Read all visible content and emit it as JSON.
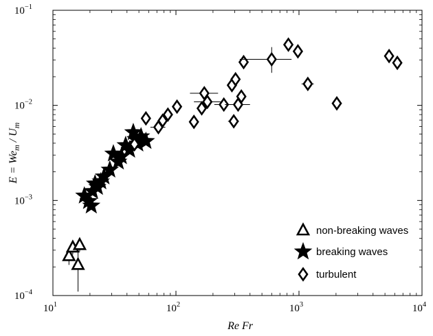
{
  "chart_data": {
    "type": "scatter",
    "xscale": "log",
    "yscale": "log",
    "xlim": [
      10,
      10000
    ],
    "ylim": [
      0.0001,
      0.1
    ],
    "xlabel": "Re Fr",
    "ylabel": "E = We_m / U_m",
    "xticks": [
      {
        "base": "10",
        "exp": "1"
      },
      {
        "base": "10",
        "exp": "2"
      },
      {
        "base": "10",
        "exp": "3"
      },
      {
        "base": "10",
        "exp": "4"
      }
    ],
    "yticks": [
      {
        "base": "10",
        "exp": "−4"
      },
      {
        "base": "10",
        "exp": "−3"
      },
      {
        "base": "10",
        "exp": "−2"
      },
      {
        "base": "10",
        "exp": "−1"
      }
    ],
    "grid": false,
    "legend_position": "bottom-right",
    "series": [
      {
        "name": "non-breaking waves",
        "marker": "triangle",
        "points": [
          {
            "x": 13.5,
            "y": 0.00026,
            "yerr": [
              0.00021,
              0.00031
            ]
          },
          {
            "x": 14.5,
            "y": 0.00032,
            "yerr": [
              0.00027,
              0.00037
            ]
          },
          {
            "x": 16.0,
            "y": 0.00021,
            "yerr": [
              0.00011,
              0.00031
            ]
          },
          {
            "x": 16.5,
            "y": 0.00034,
            "yerr": [
              0.00029,
              0.00039
            ]
          }
        ]
      },
      {
        "name": "breaking waves",
        "marker": "star",
        "points": [
          {
            "x": 18.0,
            "y": 0.00112
          },
          {
            "x": 19.5,
            "y": 0.00098
          },
          {
            "x": 20.5,
            "y": 0.00088
          },
          {
            "x": 21.0,
            "y": 0.00125
          },
          {
            "x": 22.0,
            "y": 0.0015
          },
          {
            "x": 23.0,
            "y": 0.00138
          },
          {
            "x": 24.5,
            "y": 0.00158
          },
          {
            "x": 26.0,
            "y": 0.00178
          },
          {
            "x": 29.0,
            "y": 0.0021
          },
          {
            "x": 31.0,
            "y": 0.0031
          },
          {
            "x": 34.0,
            "y": 0.00255
          },
          {
            "x": 36.0,
            "y": 0.0029
          },
          {
            "x": 39.0,
            "y": 0.0038
          },
          {
            "x": 42.0,
            "y": 0.0034
          },
          {
            "x": 45.0,
            "y": 0.0052
          },
          {
            "x": 47.0,
            "y": 0.0044
          },
          {
            "x": 49.0,
            "y": 0.00395
          },
          {
            "x": 52.0,
            "y": 0.0047
          },
          {
            "x": 57.0,
            "y": 0.0042
          }
        ]
      },
      {
        "name": "turbulent",
        "marker": "diamond",
        "points": [
          {
            "x": 46,
            "y": 0.0039,
            "xerr": [
              43,
              50
            ]
          },
          {
            "x": 57,
            "y": 0.0073
          },
          {
            "x": 72,
            "y": 0.0059,
            "xerr": [
              62,
              82
            ]
          },
          {
            "x": 78,
            "y": 0.0069
          },
          {
            "x": 86,
            "y": 0.008
          },
          {
            "x": 102,
            "y": 0.0097
          },
          {
            "x": 140,
            "y": 0.0067
          },
          {
            "x": 162,
            "y": 0.0093
          },
          {
            "x": 170,
            "y": 0.0134,
            "xerr": [
              130,
              220
            ],
            "yerr": [
              0.0116,
              0.0152
            ]
          },
          {
            "x": 180,
            "y": 0.0109,
            "xerr": [
              140,
              230
            ],
            "yerr": [
              0.0094,
              0.0124
            ]
          },
          {
            "x": 245,
            "y": 0.0102,
            "xerr": [
              205,
              290
            ],
            "yerr": [
              0.0088,
              0.0116
            ]
          },
          {
            "x": 285,
            "y": 0.0163
          },
          {
            "x": 295,
            "y": 0.0068,
            "xerr": [
              265,
              325
            ]
          },
          {
            "x": 305,
            "y": 0.0188
          },
          {
            "x": 320,
            "y": 0.0102,
            "xerr": [
              250,
              400
            ],
            "yerr": [
              0.0088,
              0.0116
            ]
          },
          {
            "x": 340,
            "y": 0.0124
          },
          {
            "x": 355,
            "y": 0.0285
          },
          {
            "x": 600,
            "y": 0.0305,
            "xerr": [
              330,
              870
            ],
            "yerr": [
              0.022,
              0.041
            ]
          },
          {
            "x": 820,
            "y": 0.0435,
            "xerr": [
              770,
              880
            ]
          },
          {
            "x": 980,
            "y": 0.037
          },
          {
            "x": 1180,
            "y": 0.0168,
            "xerr": [
              1050,
              1320
            ]
          },
          {
            "x": 2030,
            "y": 0.0105,
            "xerr": [
              1850,
              2230
            ]
          },
          {
            "x": 5400,
            "y": 0.033
          },
          {
            "x": 6300,
            "y": 0.028
          }
        ]
      }
    ]
  }
}
